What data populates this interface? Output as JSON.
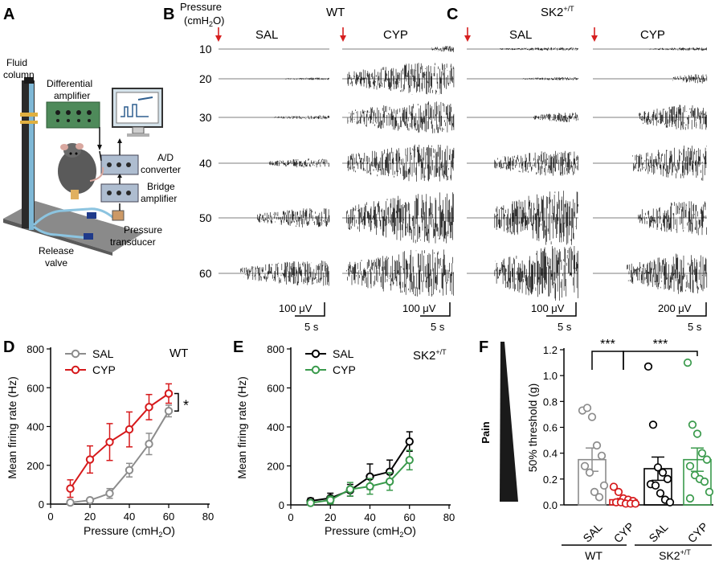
{
  "colors": {
    "sal": "#8c8c8c",
    "cyp_wt": "#d6191b",
    "sk2_sal": "#000000",
    "sk2_cyp": "#3a9a4c",
    "trace": "#000000",
    "arrow": "#d61f1f"
  },
  "panel_letters": [
    "A",
    "B",
    "C",
    "D",
    "E",
    "F"
  ],
  "panel_a": {
    "labels": {
      "fluid_column_1": "Fluid",
      "fluid_column_2": "column",
      "diff_amp_1": "Differential",
      "diff_amp_2": "amplifier",
      "ad_1": "A/D",
      "ad_2": "converter",
      "bridge_1": "Bridge",
      "bridge_2": "amplifier",
      "pressure_1": "Pressure",
      "pressure_2": "transducer",
      "release_1": "Release",
      "release_2": "valve"
    }
  },
  "panel_b": {
    "pressure_header_1": "Pressure",
    "pressure_header_2": "(cmH",
    "pressure_header_sub": "2",
    "pressure_header_3": "O)",
    "title": "WT",
    "conditions": [
      "SAL",
      "CYP"
    ],
    "pressures": [
      "10",
      "20",
      "30",
      "40",
      "50",
      "60"
    ],
    "scale_uv": [
      "100 μV",
      "100 μV"
    ],
    "scale_s": [
      "5 s",
      "5 s"
    ]
  },
  "panel_c": {
    "title": "SK2",
    "title_sup": "+/T",
    "conditions": [
      "SAL",
      "CYP"
    ],
    "scale_uv": [
      "100 μV",
      "200 μV"
    ],
    "scale_s": [
      "5 s",
      "5 s"
    ]
  },
  "chart_data": [
    {
      "panel": "D",
      "type": "line",
      "annotation": "WT",
      "xlabel": "Pressure (cmH2O)",
      "ylabel": "Mean firing rate (Hz)",
      "xlim": [
        0,
        80
      ],
      "ylim": [
        0,
        800
      ],
      "xticks": [
        0,
        20,
        40,
        60,
        80
      ],
      "yticks": [
        0,
        200,
        400,
        600,
        800
      ],
      "x": [
        10,
        20,
        30,
        40,
        50,
        60
      ],
      "series": [
        {
          "name": "SAL",
          "values": [
            8,
            20,
            55,
            175,
            310,
            480
          ],
          "err": [
            8,
            10,
            25,
            35,
            55,
            30
          ]
        },
        {
          "name": "CYP",
          "values": [
            80,
            230,
            320,
            385,
            500,
            570
          ],
          "err": [
            45,
            70,
            95,
            90,
            65,
            50
          ]
        }
      ],
      "significance": "*",
      "legend_position": "top-left"
    },
    {
      "panel": "E",
      "type": "line",
      "annotation": "SK2+/T",
      "xlabel": "Pressure (cmH2O)",
      "ylabel": "Mean firing rate (Hz)",
      "xlim": [
        0,
        80
      ],
      "ylim": [
        0,
        800
      ],
      "xticks": [
        0,
        20,
        40,
        60,
        80
      ],
      "yticks": [
        0,
        200,
        400,
        600,
        800
      ],
      "x": [
        10,
        20,
        30,
        40,
        50,
        60
      ],
      "series": [
        {
          "name": "SAL",
          "values": [
            20,
            35,
            75,
            145,
            170,
            325
          ],
          "err": [
            15,
            25,
            30,
            65,
            60,
            50
          ]
        },
        {
          "name": "CYP",
          "values": [
            10,
            25,
            80,
            95,
            120,
            230
          ],
          "err": [
            10,
            20,
            35,
            40,
            45,
            50
          ]
        }
      ],
      "legend_position": "top-left"
    },
    {
      "panel": "F",
      "type": "bar",
      "ylabel": "50% threshold (g)",
      "side_label": "Pain",
      "ylim": [
        0,
        1.2
      ],
      "yticks": [
        0.0,
        0.2,
        0.4,
        0.6,
        0.8,
        1.0,
        1.2
      ],
      "ytick_labels": [
        "0.0",
        "0.2",
        "0.4",
        "0.6",
        "0.8",
        "1.0",
        "1.2"
      ],
      "categories": [
        "SAL",
        "CYP",
        "SAL",
        "CYP"
      ],
      "groups": [
        {
          "label": "WT",
          "sup": "",
          "members": [
            0,
            1
          ]
        },
        {
          "label": "SK2",
          "sup": "+/T",
          "members": [
            2,
            3
          ]
        }
      ],
      "means": [
        0.35,
        0.04,
        0.28,
        0.35
      ],
      "sem": [
        0.09,
        0.01,
        0.09,
        0.09
      ],
      "points": [
        [
          0.73,
          0.75,
          0.68,
          0.46,
          0.38,
          0.3,
          0.25,
          0.1,
          0.06,
          0.15
        ],
        [
          0.14,
          0.1,
          0.05,
          0.04,
          0.03,
          0.02,
          0.02,
          0.01,
          0.01,
          0.01
        ],
        [
          1.07,
          0.62,
          0.29,
          0.25,
          0.2,
          0.16,
          0.15,
          0.09,
          0.04,
          0.02
        ],
        [
          1.1,
          0.62,
          0.55,
          0.4,
          0.35,
          0.3,
          0.23,
          0.2,
          0.18,
          0.1,
          0.05
        ]
      ],
      "significance": [
        {
          "from": 0,
          "to": 1,
          "label": "***"
        },
        {
          "from": 1,
          "to": 3,
          "label": "***"
        }
      ]
    }
  ]
}
